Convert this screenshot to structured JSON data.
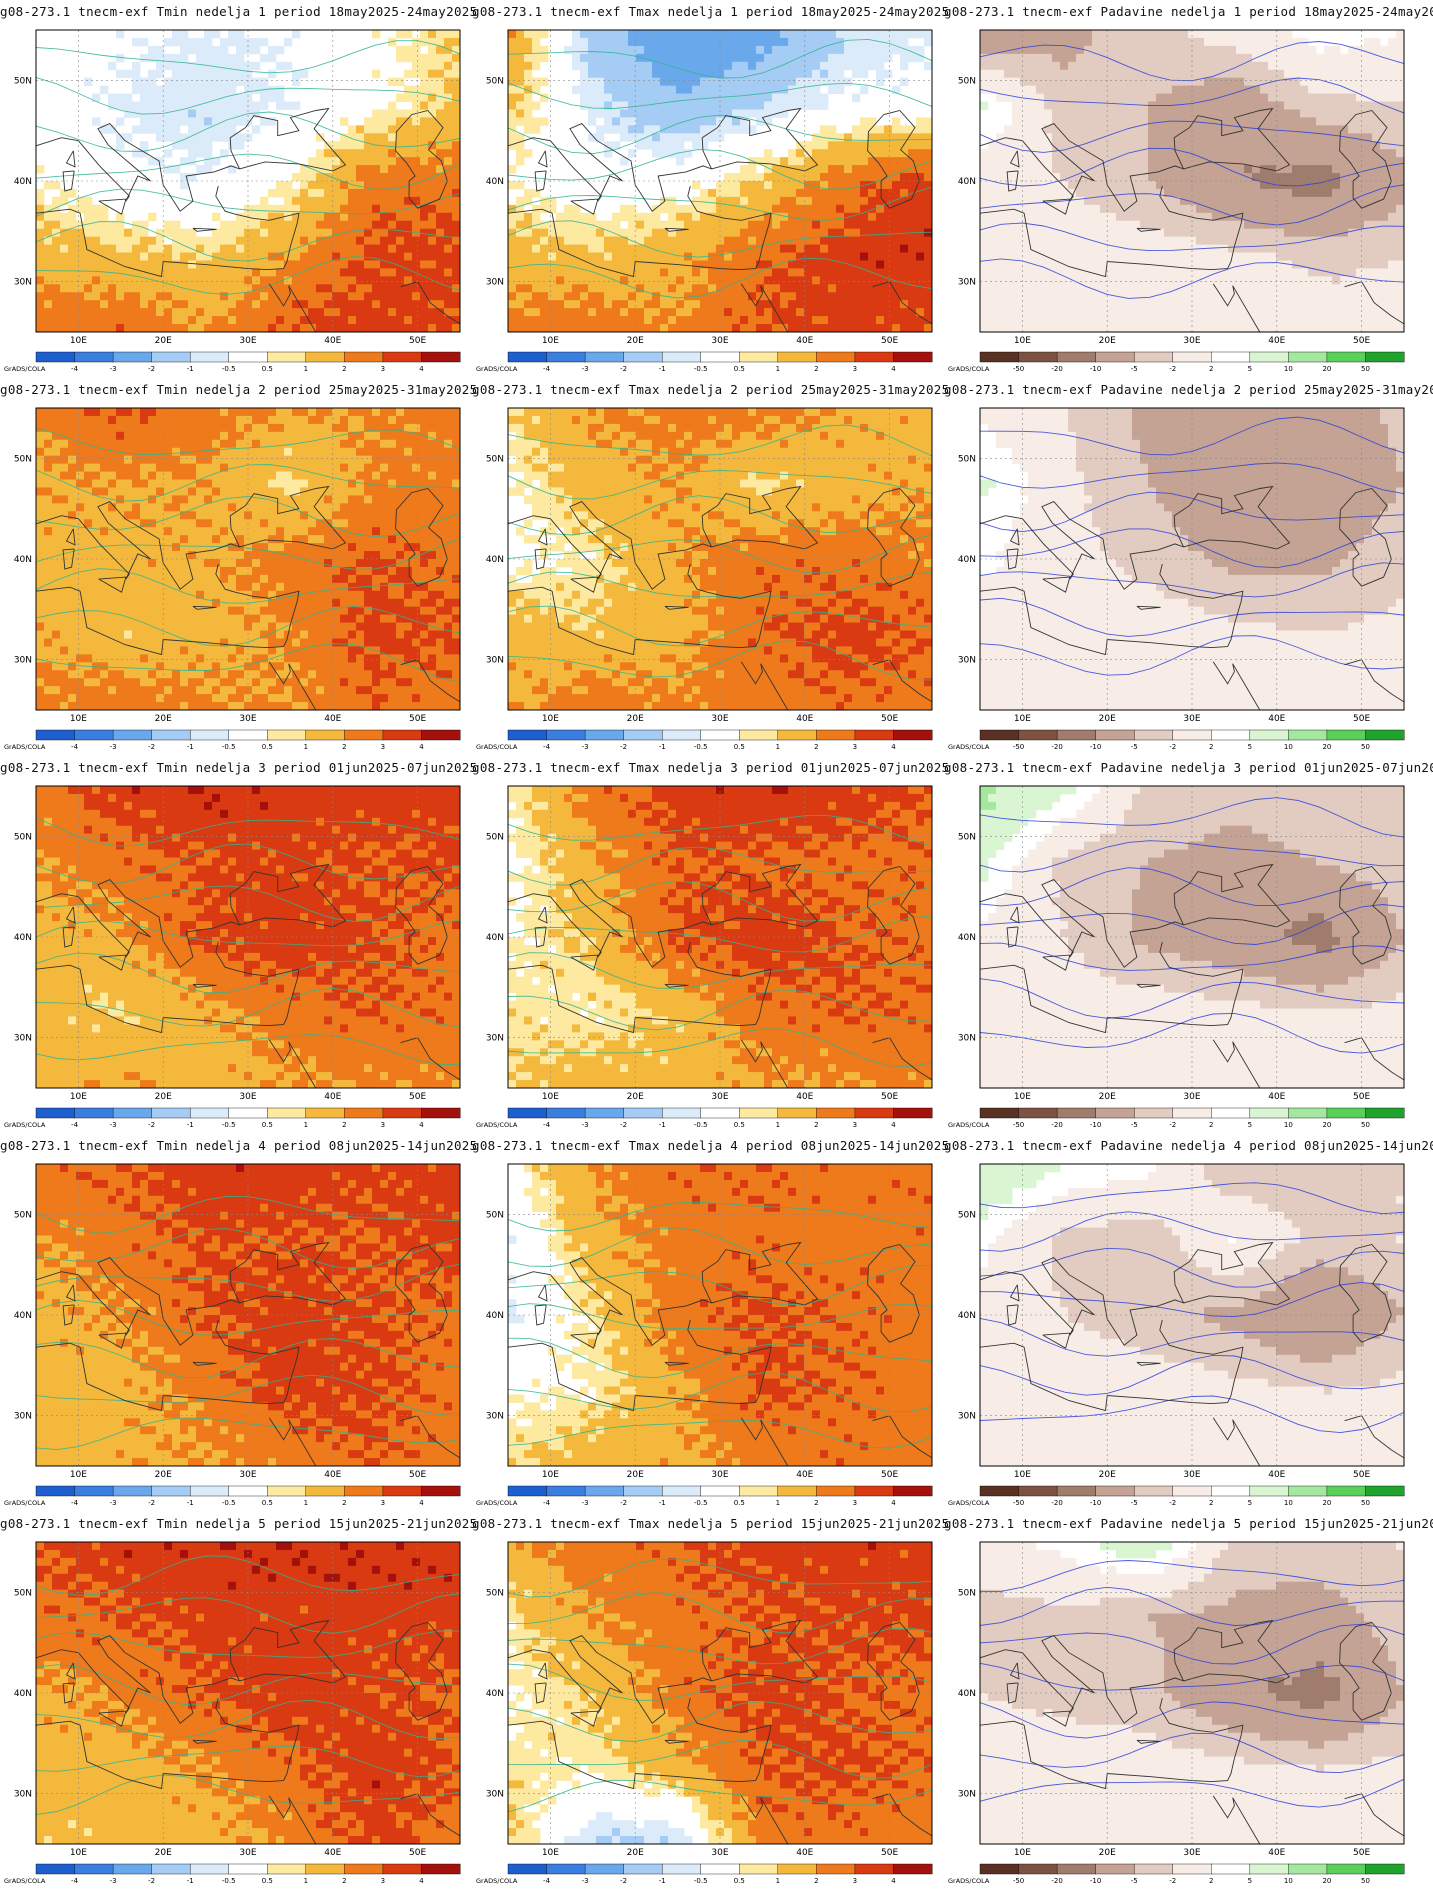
{
  "model": "g08-273.1",
  "experiment": "tnecm-exf",
  "week_word": "nedelja",
  "period_word": "period",
  "credit": "GrADS/COLA",
  "variables": [
    {
      "key": "tmin",
      "label": "Tmin",
      "colorbar": {
        "labels": [
          "-4",
          "-3",
          "-2",
          "-1",
          "-0.5",
          "0.5",
          "1",
          "2",
          "3",
          "4"
        ],
        "colors": [
          "#1e5fd0",
          "#3a7ee0",
          "#6aa8ec",
          "#a4ccf4",
          "#dcebfa",
          "#ffffff",
          "#fde9a0",
          "#f4b93c",
          "#ee7a1c",
          "#d93a12",
          "#a4110c"
        ]
      }
    },
    {
      "key": "tmax",
      "label": "Tmax",
      "colorbar": {
        "labels": [
          "-4",
          "-3",
          "-2",
          "-1",
          "-0.5",
          "0.5",
          "1",
          "2",
          "3",
          "4"
        ],
        "colors": [
          "#1e5fd0",
          "#3a7ee0",
          "#6aa8ec",
          "#a4ccf4",
          "#dcebfa",
          "#ffffff",
          "#fde9a0",
          "#f4b93c",
          "#ee7a1c",
          "#d93a12",
          "#a4110c"
        ]
      }
    },
    {
      "key": "pad",
      "label": "Padavine",
      "colorbar": {
        "labels": [
          "-50",
          "-20",
          "-10",
          "-5",
          "-2",
          "2",
          "5",
          "10",
          "20",
          "50"
        ],
        "colors": [
          "#5a3224",
          "#7d5240",
          "#a07c6c",
          "#c4a294",
          "#e2cbc0",
          "#f7ece6",
          "#ffffff",
          "#d9f5d2",
          "#a4e8a0",
          "#5ad05a",
          "#1fa32c"
        ]
      }
    }
  ],
  "weeks": [
    {
      "n": "1",
      "period": "18may2025-24may2025"
    },
    {
      "n": "2",
      "period": "25may2025-31may2025"
    },
    {
      "n": "3",
      "period": "01jun2025-07jun2025"
    },
    {
      "n": "4",
      "period": "08jun2025-14jun2025"
    },
    {
      "n": "5",
      "period": "15jun2025-21jun2025"
    }
  ],
  "axes": {
    "lon_ticks": [
      "10E",
      "20E",
      "30E",
      "40E",
      "50E"
    ],
    "lat_ticks": [
      "50N",
      "40N",
      "30N"
    ],
    "lon_range": [
      5,
      55
    ],
    "lat_range": [
      25,
      55
    ]
  },
  "anomaly_field": {
    "tmin": [
      [
        [
          0,
          -0.3,
          -0.6,
          -0.4,
          0.3,
          1.0
        ],
        [
          0,
          -0.6,
          -0.9,
          -0.5,
          0.2,
          1.2
        ],
        [
          0.5,
          -0.2,
          -0.5,
          0.4,
          2.5,
          2.6
        ],
        [
          1.5,
          1.2,
          1.0,
          2.0,
          3.2,
          3.4
        ],
        [
          2.6,
          2.8,
          2.0,
          3.1,
          3.5,
          3.0
        ]
      ],
      [
        [
          2.2,
          3.1,
          2.5,
          2.0,
          2.1,
          2.4
        ],
        [
          1.8,
          2.0,
          1.9,
          0.8,
          2.2,
          2.3
        ],
        [
          1.5,
          1.6,
          1.8,
          2.4,
          3.1,
          2.6
        ],
        [
          1.9,
          1.3,
          1.6,
          2.1,
          3.3,
          3.0
        ],
        [
          2.2,
          2.6,
          2.2,
          2.0,
          2.8,
          2.4
        ]
      ],
      [
        [
          2.5,
          3.5,
          3.9,
          3.6,
          3.4,
          3.5
        ],
        [
          2.0,
          2.6,
          3.1,
          3.3,
          3.0,
          3.2
        ],
        [
          1.6,
          1.8,
          3.2,
          3.6,
          3.1,
          2.6
        ],
        [
          1.5,
          0.9,
          1.7,
          2.5,
          3.0,
          2.7
        ],
        [
          1.4,
          2.0,
          1.5,
          1.9,
          2.0,
          2.2
        ]
      ],
      [
        [
          2.6,
          3.0,
          3.6,
          3.6,
          3.2,
          3.4
        ],
        [
          2.0,
          2.6,
          3.1,
          3.0,
          3.0,
          3.5
        ],
        [
          1.6,
          2.0,
          3.0,
          3.5,
          3.1,
          2.6
        ],
        [
          1.7,
          1.6,
          2.3,
          3.5,
          3.2,
          2.6
        ],
        [
          1.4,
          1.8,
          2.0,
          2.2,
          3.0,
          2.4
        ]
      ],
      [
        [
          3.0,
          3.6,
          3.7,
          3.8,
          3.8,
          3.6
        ],
        [
          2.6,
          3.0,
          3.4,
          3.4,
          3.5,
          3.5
        ],
        [
          1.7,
          2.2,
          3.0,
          3.6,
          3.2,
          2.8
        ],
        [
          1.5,
          1.5,
          2.0,
          2.7,
          3.6,
          3.0
        ],
        [
          1.2,
          1.3,
          1.6,
          2.1,
          3.4,
          2.4
        ]
      ]
    ],
    "tmax": [
      [
        [
          2.0,
          -1.5,
          -3.0,
          -2.5,
          -1.0,
          -0.6
        ],
        [
          1.2,
          -0.7,
          -1.8,
          -1.0,
          -0.3,
          -0.2
        ],
        [
          0.4,
          -0.2,
          0.1,
          1.1,
          2.6,
          3.6
        ],
        [
          1.5,
          1.2,
          1.6,
          2.8,
          3.5,
          3.8
        ],
        [
          2.4,
          2.6,
          2.2,
          3.1,
          3.5,
          3.0
        ]
      ],
      [
        [
          1.0,
          2.0,
          2.4,
          2.5,
          1.8,
          1.5
        ],
        [
          0.3,
          1.6,
          1.9,
          0.8,
          1.6,
          1.9
        ],
        [
          0.2,
          0.6,
          1.9,
          2.7,
          2.6,
          2.2
        ],
        [
          1.5,
          1.2,
          1.6,
          2.8,
          3.3,
          3.0
        ],
        [
          1.9,
          2.6,
          2.2,
          2.4,
          2.8,
          2.6
        ]
      ],
      [
        [
          0.5,
          2.5,
          3.5,
          3.8,
          3.6,
          3.0
        ],
        [
          0.2,
          1.8,
          3.0,
          2.8,
          2.7,
          2.8
        ],
        [
          0.4,
          1.2,
          3.0,
          3.6,
          3.0,
          2.6
        ],
        [
          0.8,
          0.6,
          1.2,
          2.6,
          3.0,
          2.8
        ],
        [
          1.0,
          1.6,
          1.4,
          1.9,
          2.0,
          2.2
        ]
      ],
      [
        [
          0.3,
          2.0,
          2.8,
          2.9,
          2.6,
          2.8
        ],
        [
          -0.6,
          1.6,
          2.4,
          2.6,
          2.5,
          2.7
        ],
        [
          -0.6,
          0.8,
          2.6,
          3.2,
          2.8,
          2.4
        ],
        [
          0.3,
          0.6,
          1.8,
          3.1,
          2.9,
          2.4
        ],
        [
          0.9,
          1.6,
          1.7,
          2.4,
          2.6,
          2.4
        ]
      ],
      [
        [
          1.8,
          2.6,
          2.9,
          3.5,
          3.6,
          3.4
        ],
        [
          0.7,
          2.0,
          2.6,
          2.9,
          3.2,
          3.3
        ],
        [
          0.4,
          1.1,
          2.5,
          3.4,
          3.0,
          2.6
        ],
        [
          0.8,
          0.6,
          1.5,
          3.0,
          3.2,
          2.8
        ],
        [
          1.2,
          -1.2,
          -1.1,
          2.4,
          2.6,
          2.4
        ]
      ]
    ],
    "pad": [
      [
        [
          -10,
          -6,
          -3,
          0,
          4,
          2
        ],
        [
          6,
          -4,
          -5,
          -8,
          -3,
          -2
        ],
        [
          -1,
          -2,
          -5,
          -10,
          -12,
          -6
        ],
        [
          0,
          0,
          0,
          -1,
          -3,
          -2
        ],
        [
          0,
          0,
          0,
          0,
          0,
          0
        ]
      ],
      [
        [
          1,
          -2,
          -6,
          -5,
          -7,
          -4
        ],
        [
          6,
          -1,
          -5,
          -10,
          -8,
          -5
        ],
        [
          3,
          -1,
          -3,
          -6,
          -6,
          -3
        ],
        [
          0,
          0,
          0,
          -1,
          -2,
          -1
        ],
        [
          0,
          0,
          0,
          0,
          0,
          0
        ]
      ],
      [
        [
          12,
          6,
          -3,
          -4,
          -3,
          -2
        ],
        [
          6,
          -3,
          -5,
          -6,
          -5,
          -3
        ],
        [
          1,
          -2,
          -6,
          -8,
          -12,
          -5
        ],
        [
          -1,
          0,
          0,
          -1,
          -2,
          -1
        ],
        [
          0,
          0,
          0,
          0,
          0,
          0
        ]
      ],
      [
        [
          10,
          5,
          3,
          -5,
          -4,
          -2
        ],
        [
          3,
          -3,
          -4,
          2,
          -3,
          -2
        ],
        [
          0,
          -2,
          -4,
          -6,
          -10,
          -5
        ],
        [
          -1,
          0,
          0,
          -1,
          -2,
          -1
        ],
        [
          0,
          0,
          0,
          0,
          0,
          0
        ]
      ],
      [
        [
          1,
          3,
          8,
          -3,
          -3,
          -2
        ],
        [
          -4,
          -3,
          -5,
          -6,
          -7,
          -3
        ],
        [
          -2,
          -3,
          -4,
          -9,
          -12,
          -5
        ],
        [
          0,
          0,
          0,
          -1,
          -2,
          -1
        ],
        [
          0,
          0,
          0,
          0,
          0,
          0
        ]
      ]
    ]
  }
}
